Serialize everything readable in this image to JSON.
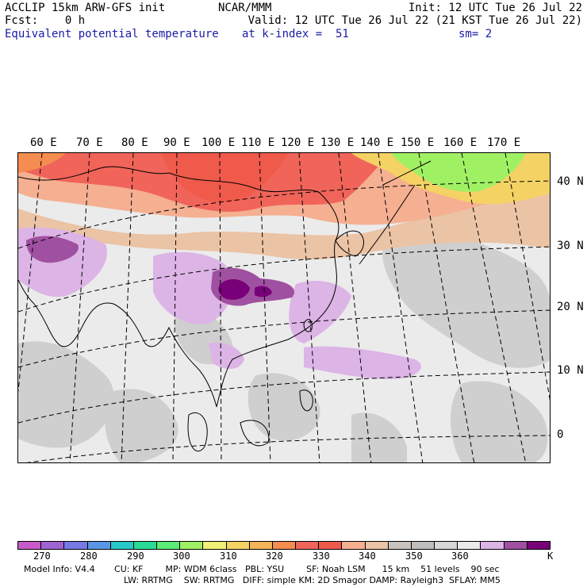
{
  "header": {
    "left1": "ACCLIP 15km ARW-GFS init",
    "left2": "Fcst:    0 h",
    "left3": "Equivalent potential temperature",
    "center1": "NCAR/MMM",
    "init": "Init: 12 UTC Tue 26 Jul 22",
    "valid": "Valid: 12 UTC Tue 26 Jul 22 (21 KST Tue 26 Jul 22)",
    "kindex": "at k-index =  51",
    "sm": "sm= 2"
  },
  "map": {
    "lon_labels": [
      "60 E",
      "70 E",
      "80 E",
      "90 E",
      "100 E",
      "110 E",
      "120 E",
      "130 E",
      "140 E",
      "150 E",
      "160 E",
      "170 E"
    ],
    "lat_labels": [
      "40 N",
      "30 N",
      "20 N",
      "10 N",
      "0"
    ]
  },
  "colorbar": {
    "colors": [
      "#c85ac8",
      "#a064d2",
      "#7878e6",
      "#5a96e6",
      "#28c8c8",
      "#28dc96",
      "#5aeb78",
      "#a0f064",
      "#f0f078",
      "#f5d264",
      "#f5b45a",
      "#f58c50",
      "#f0645a",
      "#f05a4b",
      "#f5af91",
      "#ebc3a5",
      "#c8c3be",
      "#bebebe",
      "#d7d7d7",
      "#ebebeb",
      "#dcb4e6",
      "#a050a0",
      "#780078"
    ],
    "labels": [
      "270",
      "280",
      "290",
      "300",
      "310",
      "320",
      "330",
      "340",
      "350",
      "360",
      "K"
    ]
  },
  "footer": {
    "line1": "Model Info: V4.4       CU: KF        MP: WDM 6class   PBL: YSU        SF: Noah LSM      15 km    51 levels    90 sec",
    "line2": "LW: RRTMG    SW: RRTMG   DIFF: simple KM: 2D Smagor DAMP: Rayleigh3  SFLAY: MM5"
  }
}
